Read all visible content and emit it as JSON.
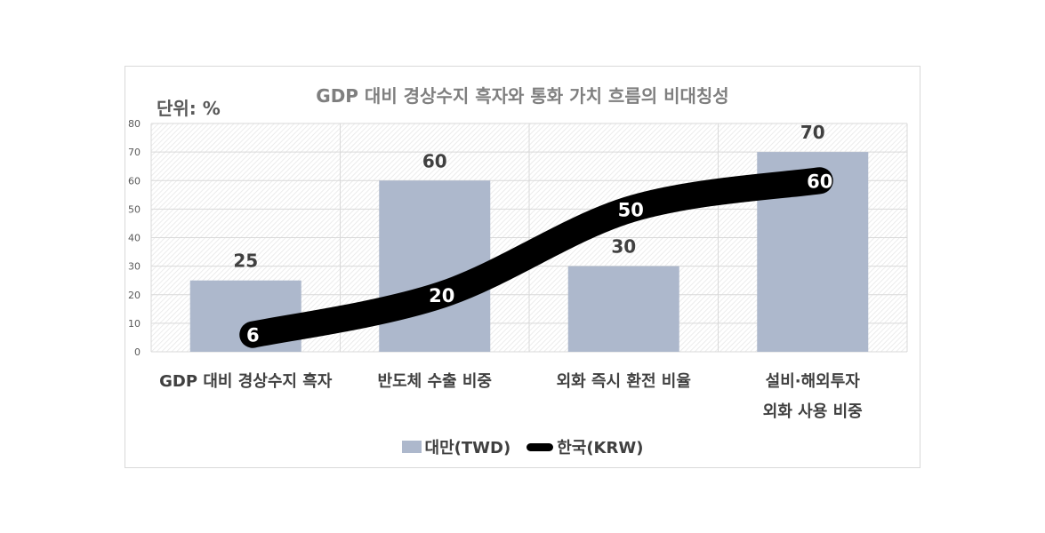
{
  "chart_data": {
    "type": "bar",
    "title": "GDP 대비 경상수지 흑자와 통화 가치 흐름의 비대칭성",
    "unit_label": "단위: %",
    "categories": [
      [
        "GDP 대비 경상수지 흑자"
      ],
      [
        "반도체 수출 비중"
      ],
      [
        "외화 즉시 환전 비율"
      ],
      [
        "설비·해외투자",
        "외화 사용 비중"
      ]
    ],
    "series": [
      {
        "name": "대만(TWD)",
        "kind": "bar",
        "values": [
          25,
          60,
          30,
          70
        ],
        "color": "#adb8cc"
      },
      {
        "name": "한국(KRW)",
        "kind": "line",
        "values": [
          6,
          20,
          50,
          60
        ],
        "color": "#000000"
      }
    ],
    "ylim": [
      0,
      80
    ],
    "yticks": [
      0,
      10,
      20,
      30,
      40,
      50,
      60,
      70,
      80
    ],
    "grid": true,
    "legend_position": "bottom"
  }
}
